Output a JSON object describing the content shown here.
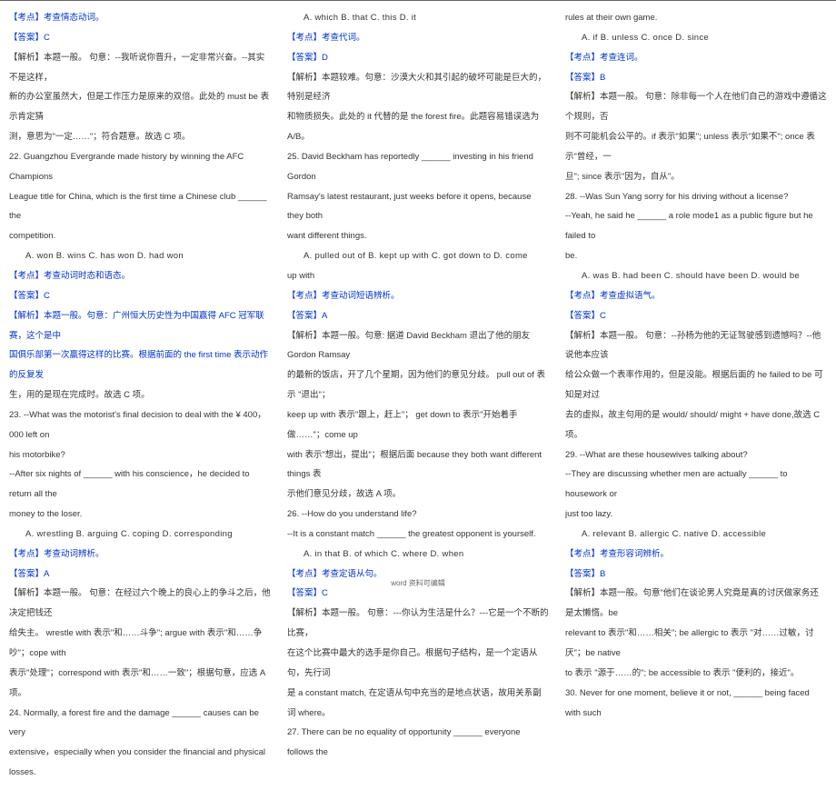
{
  "footer": "word 资料可编辑",
  "columns": [
    [
      {
        "cls": "blue",
        "text": "【考点】考查情态动词。"
      },
      {
        "cls": "blue",
        "text": "【答案】C"
      },
      {
        "cls": "",
        "text": "【解析】本题一般。 句意：--我听说你晋升，一定非常兴奋。--其实不是这样，"
      },
      {
        "cls": "",
        "text": "新的办公室虽然大，但是工作压力是原来的双倍。此处的 must be 表示肯定猜"
      },
      {
        "cls": "",
        "text": "测，意思为\"一定……\"；符合题意。故选 C 项。"
      },
      {
        "cls": "",
        "text": "22. Guangzhou Evergrande made history by winning the AFC Champions"
      },
      {
        "cls": "",
        "text": "League title for China, which is the first time a Chinese club ______ the"
      },
      {
        "cls": "",
        "text": "competition."
      },
      {
        "cls": "q-options",
        "text": "A. won      B. wins      C. has won      D. had won"
      },
      {
        "cls": "blue",
        "text": "【考点】考查动词时态和语态。"
      },
      {
        "cls": "blue",
        "text": "【答案】C"
      },
      {
        "cls": "blue",
        "text": "【解析】本题一般。句意：广州恒大历史性为中国赢得 AFC 冠军联赛，这个是中"
      },
      {
        "cls": "blue",
        "text": "国俱乐部第一次赢得这样的比赛。根据前面的 the first time  表示动作的反复发"
      },
      {
        "cls": "",
        "text": "生，用的是现在完成时。故选 C 项。"
      },
      {
        "cls": "",
        "text": "23. --What was the motorist's final decision to deal with the ¥ 400，000 left on"
      },
      {
        "cls": "",
        "text": "his motorbike?"
      },
      {
        "cls": "",
        "text": "--After six nights of ______ with his conscience，he decided to return all the"
      },
      {
        "cls": "",
        "text": "money to the loser."
      },
      {
        "cls": "q-options",
        "text": "A. wrestling      B. arguing      C. coping      D. corresponding"
      },
      {
        "cls": "blue",
        "text": "【考点】考查动词辨析。"
      },
      {
        "cls": "blue",
        "text": "【答案】A"
      },
      {
        "cls": "",
        "text": "【解析】本题一般。 句意：在经过六个晚上的良心上的争斗之后，他决定把钱还"
      },
      {
        "cls": "",
        "text": "给失主。 wrestle with  表示\"和……斗争\"; argue with 表示\"和……争吵\"；cope with"
      },
      {
        "cls": "",
        "text": "表示\"处理\"；correspond with 表示\"和……一致\"；根据句意，应选 A 项。"
      },
      {
        "cls": "",
        "text": "24.  Normally,  a  forest  fire  and  the  damage  ______  causes  can  be  very"
      },
      {
        "cls": "",
        "text": "extensive，especially when you consider the financial and physical losses."
      }
    ],
    [
      {
        "cls": "q-options",
        "text": "A. which      B. that      C. this      D. it"
      },
      {
        "cls": "blue",
        "text": "【考点】考查代词。"
      },
      {
        "cls": "blue",
        "text": "【答案】D"
      },
      {
        "cls": "",
        "text": "【解析】本题较难。句意：沙漠大火和其引起的破坏可能是巨大的，特别是经济"
      },
      {
        "cls": "",
        "text": "和物质损失。此处的 it 代替的是 the forest fire。此题容易错误选为 A/B。"
      },
      {
        "cls": "",
        "text": "25.  David  Beckham  has  reportedly  ______  investing  in  his  friend  Gordon"
      },
      {
        "cls": "",
        "text": "Ramsay's  latest  restaurant,  just  weeks  before  it  opens,  because  they  both"
      },
      {
        "cls": "",
        "text": "want different things."
      },
      {
        "cls": "q-options",
        "text": "A. pulled out of       B. kept up with       C. got down to       D. come"
      },
      {
        "cls": "",
        "text": "up with"
      },
      {
        "cls": "blue",
        "text": "【考点】考查动词短语辨析。"
      },
      {
        "cls": "blue",
        "text": "【答案】A"
      },
      {
        "cls": "",
        "text": "【解析】本题一般。句意: 据道 David Beckham 退出了他的朋友 Gordon Ramsay"
      },
      {
        "cls": "",
        "text": "的最新的饭店，开了几个星期，因为他们的意见分歧。 pull out of 表示 \"退出\"；"
      },
      {
        "cls": "",
        "text": "keep up with 表示\"跟上，赶上\"； get down to 表示\"开始着手做……\"；come up"
      },
      {
        "cls": "",
        "text": "with 表示\"想出，提出\"；根据后面 because they both want different things 表"
      },
      {
        "cls": "",
        "text": "示他们意见分歧，故选 A 项。"
      },
      {
        "cls": "",
        "text": "26. --How do you understand life?"
      },
      {
        "cls": "",
        "text": "--It is a constant match ______ the greatest opponent is yourself."
      },
      {
        "cls": "q-options",
        "text": "A. in that      B. of which      C. where      D. when"
      },
      {
        "cls": "blue",
        "text": "【考点】考查定语从句。"
      },
      {
        "cls": "blue",
        "text": "【答案】C"
      },
      {
        "cls": "",
        "text": "【解析】本题一般。 句意：---你认为生活是什么？---它是一个不断的比赛，"
      },
      {
        "cls": "",
        "text": "在这个比赛中最大的选手是你自己。根据句子结构，是一个定语从句，先行词"
      },
      {
        "cls": "",
        "text": "是 a constant match, 在定语从句中充当的是地点状语，故用关系副词 where。"
      },
      {
        "cls": "",
        "text": "27.  There  can  be  no  equality  of  opportunity  ______  everyone  follows  the"
      }
    ],
    [
      {
        "cls": "",
        "text": "rules at their own game."
      },
      {
        "cls": "q-options",
        "text": "A. if      B. unless      C. once      D. since"
      },
      {
        "cls": "blue",
        "text": "【考点】考查连词。"
      },
      {
        "cls": "blue",
        "text": "【答案】B"
      },
      {
        "cls": "",
        "text": "【解析】本题一般。 句意：除非每一个人在他们自己的游戏中遵循这个规则，否"
      },
      {
        "cls": "",
        "text": "则不可能机会公平的。if 表示\"如果\"; unless 表示\"如果不\"; once 表示\"曾经，一"
      },
      {
        "cls": "",
        "text": "旦\"; since 表示\"因为，自从\"。"
      },
      {
        "cls": "",
        "text": "28. --Was Sun Yang sorry for his driving without a license?"
      },
      {
        "cls": "",
        "text": "--Yeah, he said he ______ a role mode1 as a public figure but he failed to"
      },
      {
        "cls": "",
        "text": "be."
      },
      {
        "cls": "q-options",
        "text": "A. was      B. had been      C. should have been      D. would be"
      },
      {
        "cls": "blue",
        "text": "【考点】考查虚拟语气。"
      },
      {
        "cls": "blue",
        "text": "【答案】C"
      },
      {
        "cls": "",
        "text": "【解析】本题一般。 句意：--孙杨为他的无证驾驶感到遗憾吗？--他说他本应该"
      },
      {
        "cls": "",
        "text": "给公众做一个表率作用的，但是没能。根据后面的 he failed to be 可知是对过"
      },
      {
        "cls": "",
        "text": "去的虚拟，故主句用的是 would/ should/ might + have done,故选 C 项。"
      },
      {
        "cls": "",
        "text": "29. --What are these housewives talking about?"
      },
      {
        "cls": "",
        "text": "--They  are  discussing  whether  men  are  actually  ______  to  housework  or"
      },
      {
        "cls": "",
        "text": "just too lazy."
      },
      {
        "cls": "q-options",
        "text": "A. relevant      B. allergic      C. native      D. accessible"
      },
      {
        "cls": "blue",
        "text": "【考点】考查形容词辨析。"
      },
      {
        "cls": "blue",
        "text": "【答案】B"
      },
      {
        "cls": "",
        "text": "【解析】本题一般。句意\"他们在谈论男人究竟是真的讨厌做家务还是太懒惰。be"
      },
      {
        "cls": "",
        "text": "relevant to  表示\"和……相关\"; be allergic to  表示 \"对……过敏，讨厌\"；be native"
      },
      {
        "cls": "",
        "text": "to 表示 \"源于……的\"; be accessible to  表示 \"便利的，接近\"。"
      },
      {
        "cls": "",
        "text": "30. Never for one moment, believe it or not, ______ being faced with such"
      }
    ]
  ]
}
